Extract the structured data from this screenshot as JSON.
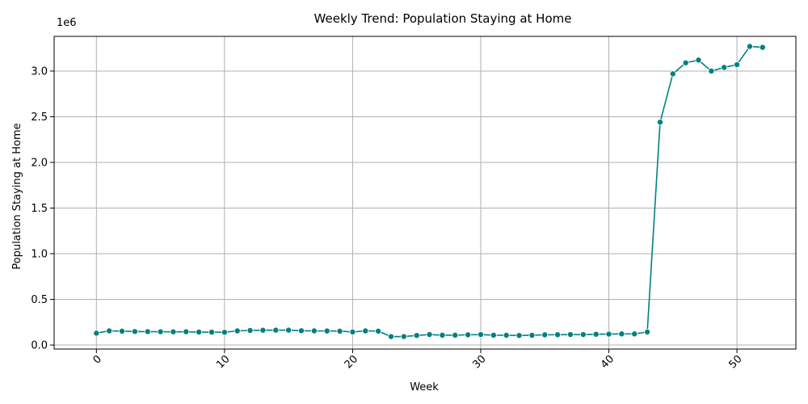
{
  "chart_data": {
    "type": "line",
    "title": "Weekly Trend: Population Staying at Home",
    "xlabel": "Week",
    "ylabel": "Population Staying at Home",
    "y_offset_label": "1e6",
    "xlim": [
      -3.3,
      54.6
    ],
    "ylim": [
      -0.044,
      3.38
    ],
    "x_ticks": [
      0,
      10,
      20,
      30,
      40,
      50
    ],
    "x_tick_labels": [
      "0",
      "10",
      "20",
      "30",
      "40",
      "50"
    ],
    "y_ticks": [
      0.0,
      0.5,
      1.0,
      1.5,
      2.0,
      2.5,
      3.0
    ],
    "y_tick_labels": [
      "0.0",
      "0.5",
      "1.0",
      "1.5",
      "2.0",
      "2.5",
      "3.0"
    ],
    "grid": true,
    "line_color": "#008080",
    "x": [
      0,
      1,
      2,
      3,
      4,
      5,
      6,
      7,
      8,
      9,
      10,
      11,
      12,
      13,
      14,
      15,
      16,
      17,
      18,
      19,
      20,
      21,
      22,
      23,
      24,
      25,
      26,
      27,
      28,
      29,
      30,
      31,
      32,
      33,
      34,
      35,
      36,
      37,
      38,
      39,
      40,
      41,
      42,
      43,
      44,
      45,
      46,
      47,
      48,
      49,
      50,
      51,
      52
    ],
    "y": [
      0.13,
      0.155,
      0.152,
      0.148,
      0.147,
      0.146,
      0.145,
      0.146,
      0.142,
      0.141,
      0.14,
      0.155,
      0.16,
      0.162,
      0.163,
      0.163,
      0.157,
      0.155,
      0.154,
      0.152,
      0.143,
      0.155,
      0.152,
      0.093,
      0.093,
      0.105,
      0.115,
      0.108,
      0.108,
      0.112,
      0.115,
      0.108,
      0.107,
      0.105,
      0.107,
      0.112,
      0.113,
      0.115,
      0.115,
      0.118,
      0.12,
      0.122,
      0.122,
      0.143,
      2.44,
      2.97,
      3.09,
      3.12,
      3.0,
      3.04,
      3.07,
      3.27,
      3.26
    ]
  }
}
